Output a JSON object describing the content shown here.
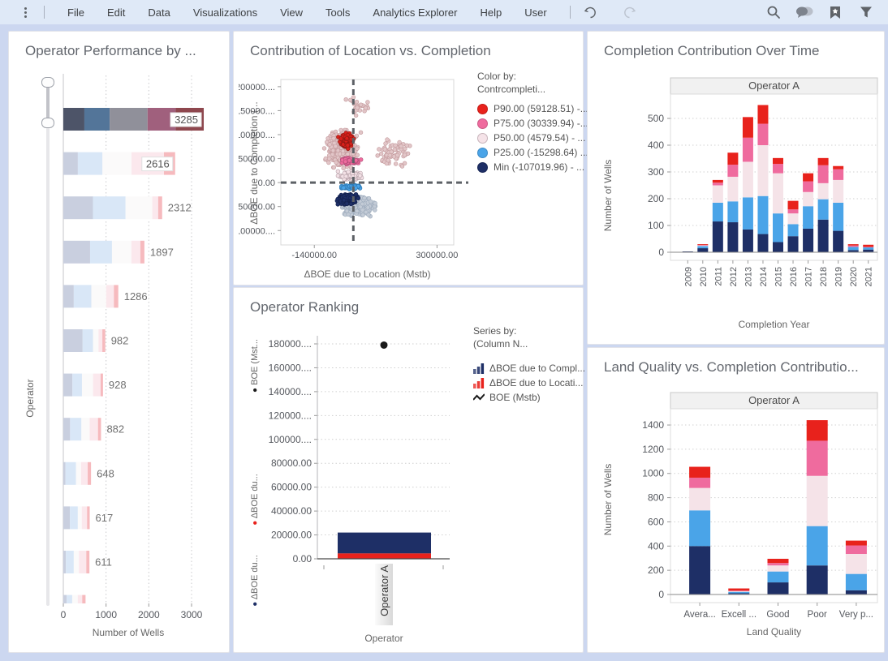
{
  "topbar": {
    "menu_items": [
      "File",
      "Edit",
      "Data",
      "Visualizations",
      "View",
      "Tools",
      "Analytics Explorer",
      "Help",
      "User"
    ],
    "icons": [
      "kebab-menu",
      "undo-arrow",
      "redo-arrow",
      "magnifier",
      "comment-bubbles",
      "bookmark-star",
      "filter-funnel"
    ]
  },
  "colors": {
    "p90_red": "#e8221c",
    "p75_pink": "#ef6b9e",
    "p50_light": "#f5e3e8",
    "p25_blue": "#4aa4e8",
    "min_navy": "#1e2f66",
    "faded_segments": [
      "#c9cfdf",
      "#d9e7f7",
      "#fbfafa",
      "#fbe8ed",
      "#f6babe"
    ],
    "selected_segments": [
      "#4d5468",
      "#537599",
      "#90909a",
      "#a0607d",
      "#8e474e"
    ]
  },
  "chart_data": [
    {
      "id": "operator_performance",
      "type": "bar",
      "orientation": "horizontal",
      "title": "Operator Performance by ...",
      "xlabel": "Number of Wells",
      "ylabel": "Operator",
      "xticks": [
        0,
        1000,
        2000,
        3000
      ],
      "xlim": [
        0,
        4200
      ],
      "grid": true,
      "bars": [
        {
          "value": 3285,
          "label": "3285",
          "selected": true,
          "boxed": true,
          "fractions": [
            0.15,
            0.18,
            0.27,
            0.2,
            0.2
          ]
        },
        {
          "value": 2616,
          "label": "2616",
          "selected": false,
          "boxed": true,
          "fractions": [
            0.13,
            0.22,
            0.26,
            0.29,
            0.1
          ]
        },
        {
          "value": 2312,
          "label": "2312",
          "selected": false,
          "boxed": false,
          "fractions": [
            0.3,
            0.33,
            0.27,
            0.06,
            0.04
          ]
        },
        {
          "value": 1897,
          "label": "1897",
          "selected": false,
          "boxed": false,
          "fractions": [
            0.33,
            0.27,
            0.24,
            0.11,
            0.05
          ]
        },
        {
          "value": 1286,
          "label": "1286",
          "selected": false,
          "boxed": false,
          "fractions": [
            0.19,
            0.32,
            0.27,
            0.14,
            0.08
          ]
        },
        {
          "value": 982,
          "label": "982",
          "selected": false,
          "boxed": false,
          "fractions": [
            0.46,
            0.25,
            0.13,
            0.09,
            0.07
          ]
        },
        {
          "value": 928,
          "label": "928",
          "selected": false,
          "boxed": false,
          "fractions": [
            0.23,
            0.24,
            0.28,
            0.19,
            0.06
          ]
        },
        {
          "value": 882,
          "label": "882",
          "selected": false,
          "boxed": false,
          "fractions": [
            0.18,
            0.3,
            0.22,
            0.22,
            0.08
          ]
        },
        {
          "value": 648,
          "label": "648",
          "selected": false,
          "boxed": false,
          "fractions": [
            0.08,
            0.38,
            0.18,
            0.24,
            0.12
          ]
        },
        {
          "value": 617,
          "label": "617",
          "selected": false,
          "boxed": false,
          "fractions": [
            0.25,
            0.3,
            0.15,
            0.2,
            0.1
          ]
        },
        {
          "value": 611,
          "label": "611",
          "selected": false,
          "boxed": false,
          "fractions": [
            0.1,
            0.3,
            0.2,
            0.28,
            0.12
          ]
        },
        {
          "value": 520,
          "label": "",
          "selected": false,
          "boxed": false,
          "fractions": [
            0.15,
            0.25,
            0.25,
            0.2,
            0.15
          ]
        }
      ]
    },
    {
      "id": "location_vs_completion",
      "type": "scatter",
      "title": "Contribution of Location vs. Completion",
      "xlabel": "ΔBOE due to Location (Mstb)",
      "ylabel": "ΔBOE due to Completion (...",
      "xlim": [
        -260000,
        360000
      ],
      "ylim": [
        -130000,
        215000
      ],
      "xtick_values": [
        -140000,
        300000
      ],
      "xtick_labels": [
        "-140000.00",
        "300000.00"
      ],
      "ytick_values": [
        200000,
        150000,
        100000,
        50000,
        0,
        -50000,
        -100000
      ],
      "ytick_labels": [
        "200000....",
        "150000....",
        "100000....",
        "50000.00",
        "0.00",
        "-50000.00",
        "-100000...."
      ],
      "crosshair": {
        "x": 0,
        "y": 0
      },
      "legend": {
        "head": "Color by:",
        "sub": "Contrcompleti...",
        "items": [
          {
            "label": "P90.00 (59128.51) -...",
            "color": "#e8221c"
          },
          {
            "label": "P75.00 (30339.94) -...",
            "color": "#ef6b9e"
          },
          {
            "label": "P50.00 (4579.54) - ...",
            "color": "#f5e3e8"
          },
          {
            "label": "P25.00 (-15298.64) ...",
            "color": "#4aa4e8"
          },
          {
            "label": "Min (-107019.96) - ...",
            "color": "#1e2f66"
          }
        ]
      },
      "clusters": [
        {
          "name": "faded-pink-cloud",
          "count": 420,
          "cx": -40000,
          "cy": 70000,
          "sx": 70000,
          "sy": 48000,
          "fill": "#e2c6c8",
          "stroke": "#c49b9e"
        },
        {
          "name": "faded-pink-right",
          "count": 70,
          "cx": 140000,
          "cy": 60000,
          "sx": 95000,
          "sy": 38000,
          "fill": "#e2c6c8",
          "stroke": "#c49b9e"
        },
        {
          "name": "faded-pink-top",
          "count": 25,
          "cx": 20000,
          "cy": 160000,
          "sx": 60000,
          "sy": 30000,
          "fill": "#e2c6c8",
          "stroke": "#c49b9e"
        },
        {
          "name": "faded-gray-bottom",
          "count": 300,
          "cx": 10000,
          "cy": -48000,
          "sx": 80000,
          "sy": 28000,
          "fill": "#c3cbd6",
          "stroke": "#9dabbc"
        },
        {
          "name": "p50-band",
          "count": 130,
          "cx": -10000,
          "cy": 15000,
          "sx": 55000,
          "sy": 12000,
          "fill": "#f2e0e5",
          "stroke": "#b7a2aa"
        },
        {
          "name": "min-cloud",
          "count": 220,
          "cx": -20000,
          "cy": -35000,
          "sx": 42000,
          "sy": 15000,
          "fill": "#1e2f66",
          "stroke": "#13204a"
        },
        {
          "name": "p25-band",
          "count": 85,
          "cx": -12000,
          "cy": -9000,
          "sx": 46000,
          "sy": 6000,
          "fill": "#4aa4e8",
          "stroke": "#2d77b0"
        },
        {
          "name": "p75-band",
          "count": 85,
          "cx": -12000,
          "cy": 45000,
          "sx": 46000,
          "sy": 9000,
          "fill": "#ef6b9e",
          "stroke": "#b04e77"
        },
        {
          "name": "p90-cluster",
          "count": 175,
          "cx": -25000,
          "cy": 88000,
          "sx": 30000,
          "sy": 19000,
          "fill": "#d8201a",
          "stroke": "#8e1a14"
        }
      ]
    },
    {
      "id": "operator_ranking",
      "type": "bar",
      "title": "Operator Ranking",
      "xlabel": "Operator",
      "category": "Operator A",
      "ytick_labels": [
        "180000....",
        "160000....",
        "140000....",
        "120000....",
        "100000....",
        "80000.00",
        "60000.00",
        "40000.00",
        "20000.00",
        "0.00"
      ],
      "ytick_values": [
        180000,
        160000,
        140000,
        120000,
        100000,
        80000,
        60000,
        40000,
        20000,
        0
      ],
      "ylim": [
        0,
        180000
      ],
      "axis_scales": [
        {
          "label": "BOE (Mst...",
          "bullet": "#1a1a1a"
        },
        {
          "label": "ΔBOE du...",
          "bullet": "#e8221c"
        },
        {
          "label": "ΔBOE du...",
          "bullet": "#1e2f66"
        }
      ],
      "series": [
        {
          "name": "ΔBOE due to Completion",
          "color": "#1e2f66",
          "value": 17500,
          "stack_base": 4500
        },
        {
          "name": "ΔBOE due to Location",
          "color": "#e8221c",
          "value": 4500,
          "stack_base": 0
        },
        {
          "name": "BOE (Mstb)",
          "type": "point",
          "color": "#1a1a1a",
          "value": 179000
        }
      ],
      "legend": {
        "head": "Series by:",
        "sub": "(Column N...",
        "items": [
          {
            "label": "ΔBOE due to Compl...",
            "icon": "mini-bars",
            "color": "#1e2f66"
          },
          {
            "label": "ΔBOE due to Locati...",
            "icon": "mini-bars",
            "color": "#e8221c"
          },
          {
            "label": "BOE (Mstb)",
            "icon": "zigzag-line",
            "color": "#1a1a1a"
          }
        ]
      }
    },
    {
      "id": "completion_over_time",
      "type": "bar",
      "stacked": true,
      "title": "Completion Contribution Over Time",
      "trellis_header": "Operator A",
      "xlabel": "Completion Year",
      "ylabel": "Number of Wells",
      "ytick_values": [
        0,
        100,
        200,
        300,
        400,
        500
      ],
      "categories": [
        "2009",
        "2010",
        "2011",
        "2012",
        "2013",
        "2014",
        "2015",
        "2016",
        "2017",
        "2018",
        "2019",
        "2020",
        "2021"
      ],
      "series": [
        {
          "name": "Min",
          "color": "#1e2f66",
          "values": [
            3,
            15,
            115,
            112,
            85,
            68,
            38,
            60,
            88,
            122,
            80,
            8,
            10
          ]
        },
        {
          "name": "P25",
          "color": "#4aa4e8",
          "values": [
            0,
            8,
            70,
            78,
            120,
            142,
            107,
            45,
            84,
            76,
            105,
            12,
            8
          ]
        },
        {
          "name": "P50",
          "color": "#f5e3e8",
          "values": [
            0,
            2,
            65,
            92,
            133,
            190,
            150,
            40,
            53,
            60,
            85,
            0,
            0
          ]
        },
        {
          "name": "P75",
          "color": "#ef6b9e",
          "values": [
            0,
            2,
            10,
            45,
            90,
            80,
            35,
            15,
            40,
            67,
            40,
            5,
            2
          ]
        },
        {
          "name": "P90",
          "color": "#e8221c",
          "values": [
            0,
            3,
            10,
            45,
            77,
            70,
            22,
            32,
            30,
            27,
            12,
            5,
            8
          ]
        }
      ]
    },
    {
      "id": "land_quality",
      "type": "bar",
      "stacked": true,
      "title": "Land Quality vs. Completion Contributio...",
      "trellis_header": "Operator A",
      "xlabel": "Land Quality",
      "ylabel": "Number of Wells",
      "ytick_values": [
        0,
        200,
        400,
        600,
        800,
        1000,
        1200,
        1400
      ],
      "categories": [
        "Avera...",
        "Excell ...",
        "Good",
        "Poor",
        "Very p..."
      ],
      "series": [
        {
          "name": "Min",
          "color": "#1e2f66",
          "values": [
            400,
            10,
            100,
            240,
            35
          ]
        },
        {
          "name": "P25",
          "color": "#4aa4e8",
          "values": [
            295,
            12,
            90,
            325,
            135
          ]
        },
        {
          "name": "P50",
          "color": "#f5e3e8",
          "values": [
            185,
            5,
            50,
            415,
            165
          ]
        },
        {
          "name": "P75",
          "color": "#ef6b9e",
          "values": [
            85,
            5,
            20,
            290,
            70
          ]
        },
        {
          "name": "P90",
          "color": "#e8221c",
          "values": [
            90,
            18,
            35,
            170,
            40
          ]
        }
      ]
    }
  ]
}
